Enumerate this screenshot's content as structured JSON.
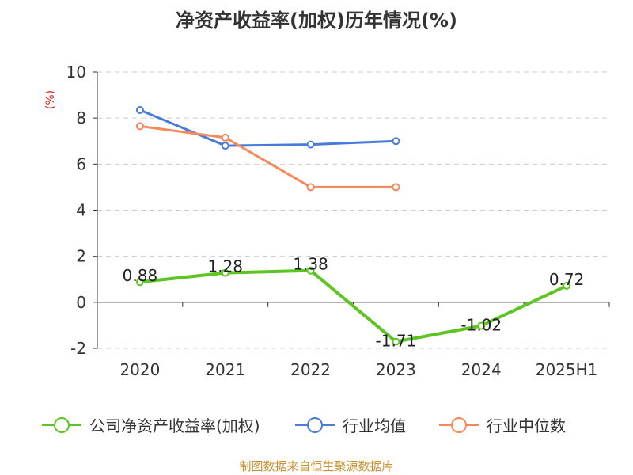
{
  "title": "净资产收益率(加权)历年情况(%)",
  "source": "制图数据来自恒生聚源数据库",
  "chart_data": {
    "type": "line",
    "categories": [
      "2020",
      "2021",
      "2022",
      "2023",
      "2024",
      "2025H1"
    ],
    "ylabel": "(%)",
    "ylim": [
      -2,
      10
    ],
    "yticks": [
      10,
      8,
      6,
      4,
      2,
      0,
      -2
    ],
    "grid": true,
    "legend_position": "bottom",
    "series": [
      {
        "name": "公司净资产收益率(加权)",
        "color": "#5ec422",
        "values": [
          0.88,
          1.28,
          1.38,
          -1.71,
          -1.02,
          0.72
        ],
        "data_labels": [
          "0.88",
          "1.28",
          "1.38",
          "-1.71",
          "-1.02",
          "0.72"
        ]
      },
      {
        "name": "行业均值",
        "color": "#4a7bd8",
        "values": [
          8.35,
          6.8,
          6.85,
          7.0,
          null,
          null
        ]
      },
      {
        "name": "行业中位数",
        "color": "#f5895b",
        "values": [
          7.65,
          7.15,
          5.0,
          5.0,
          null,
          null
        ]
      }
    ]
  }
}
